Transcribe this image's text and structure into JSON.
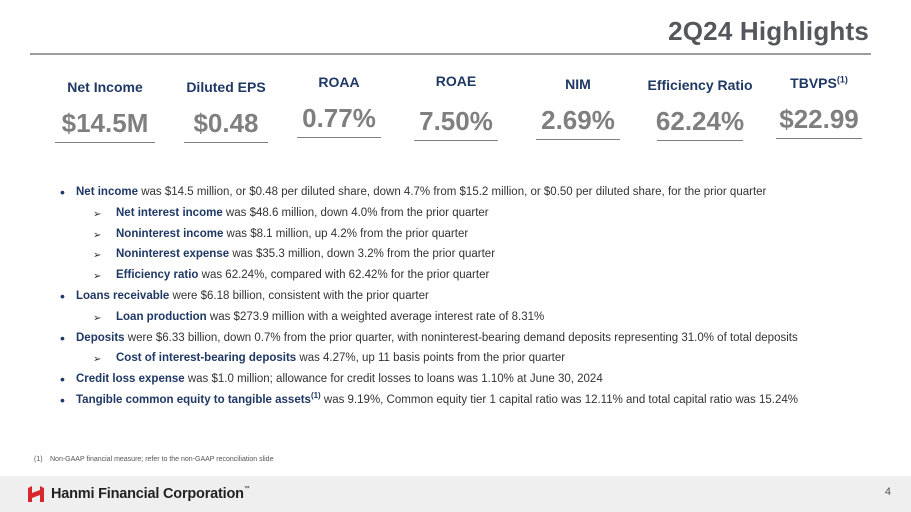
{
  "title": "2Q24 Highlights",
  "kpis": [
    {
      "label": "Net Income",
      "sup": "",
      "value": "$14.5M"
    },
    {
      "label": "Diluted EPS",
      "sup": "",
      "value": "$0.48"
    },
    {
      "label": "ROAA",
      "sup": "",
      "value": "0.77%"
    },
    {
      "label": "ROAE",
      "sup": "",
      "value": "7.50%"
    },
    {
      "label": "NIM",
      "sup": "",
      "value": "2.69%"
    },
    {
      "label": "Efficiency Ratio",
      "sup": "",
      "value": "62.24%"
    },
    {
      "label": "TBVPS",
      "sup": "(1)",
      "value": "$22.99"
    }
  ],
  "bullets": [
    {
      "level": 1,
      "bold": "Net income",
      "sup": "",
      "text": " was $14.5 million, or $0.48 per diluted share, down 4.7% from $15.2 million, or $0.50 per diluted share, for the prior quarter"
    },
    {
      "level": 2,
      "bold": "Net interest income",
      "sup": "",
      "text": " was $48.6 million, down 4.0% from the prior quarter"
    },
    {
      "level": 2,
      "bold": "Noninterest income",
      "sup": "",
      "text": " was $8.1 million, up 4.2% from the prior quarter"
    },
    {
      "level": 2,
      "bold": "Noninterest expense",
      "sup": "",
      "text": " was $35.3 million, down 3.2% from the prior quarter"
    },
    {
      "level": 2,
      "bold": "Efficiency ratio",
      "sup": "",
      "text": " was 62.24%, compared with 62.42% for the prior quarter"
    },
    {
      "level": 1,
      "bold": "Loans receivable",
      "sup": "",
      "text": " were $6.18 billion, consistent with the prior quarter"
    },
    {
      "level": 2,
      "bold": "Loan production",
      "sup": "",
      "text": " was $273.9 million with a weighted average interest rate of 8.31%"
    },
    {
      "level": 1,
      "bold": "Deposits",
      "sup": "",
      "text": " were $6.33 billion, down 0.7% from the prior quarter, with noninterest-bearing demand deposits representing 31.0% of total deposits"
    },
    {
      "level": 2,
      "bold": "Cost of interest-bearing deposits",
      "sup": "",
      "text": " was 4.27%, up 11 basis points from the prior quarter"
    },
    {
      "level": 1,
      "bold": "Credit loss expense",
      "sup": "",
      "text": " was $1.0 million; allowance for credit losses to loans was 1.10% at June 30, 2024"
    },
    {
      "level": 1,
      "bold": "Tangible common equity to tangible assets",
      "sup": "(1)",
      "text": " was 9.19%, Common equity tier 1 capital ratio was 12.11% and total capital ratio was 15.24%"
    }
  ],
  "footnote": {
    "num": "(1)",
    "text": "Non-GAAP financial measure; refer to the non-GAAP reconciliation slide"
  },
  "footer": {
    "company": "Hanmi Financial Corporation",
    "trademark": "™",
    "page": "4"
  },
  "colors": {
    "navy": "#1f3864",
    "gray_value": "#7f7f7f",
    "logo_red": "#d7282f"
  }
}
